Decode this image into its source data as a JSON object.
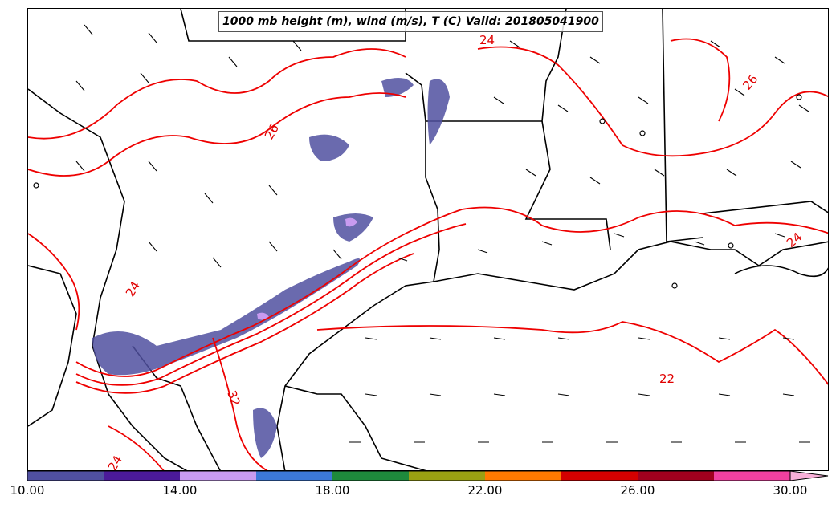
{
  "title": "1000 mb height (m), wind (m/s), T (C) Valid: 201805041900",
  "contour_labels": [
    "24",
    "26",
    "26",
    "24",
    "24",
    "32",
    "22",
    "24"
  ],
  "colorbar": {
    "ticks": [
      "10.00",
      "14.00",
      "18.00",
      "22.00",
      "26.00",
      "30.00"
    ],
    "colors": [
      "#5050a0",
      "#4b1a9a",
      "#c89bf0",
      "#3c78d8",
      "#1e8a3c",
      "#9aa012",
      "#ff7a00",
      "#d40000",
      "#a0001e",
      "#f040a0",
      "#f8b0d8"
    ]
  },
  "colors": {
    "temperature_contour": "#ee0000",
    "coastline": "#000000",
    "precip_shading": "#5050a0"
  }
}
